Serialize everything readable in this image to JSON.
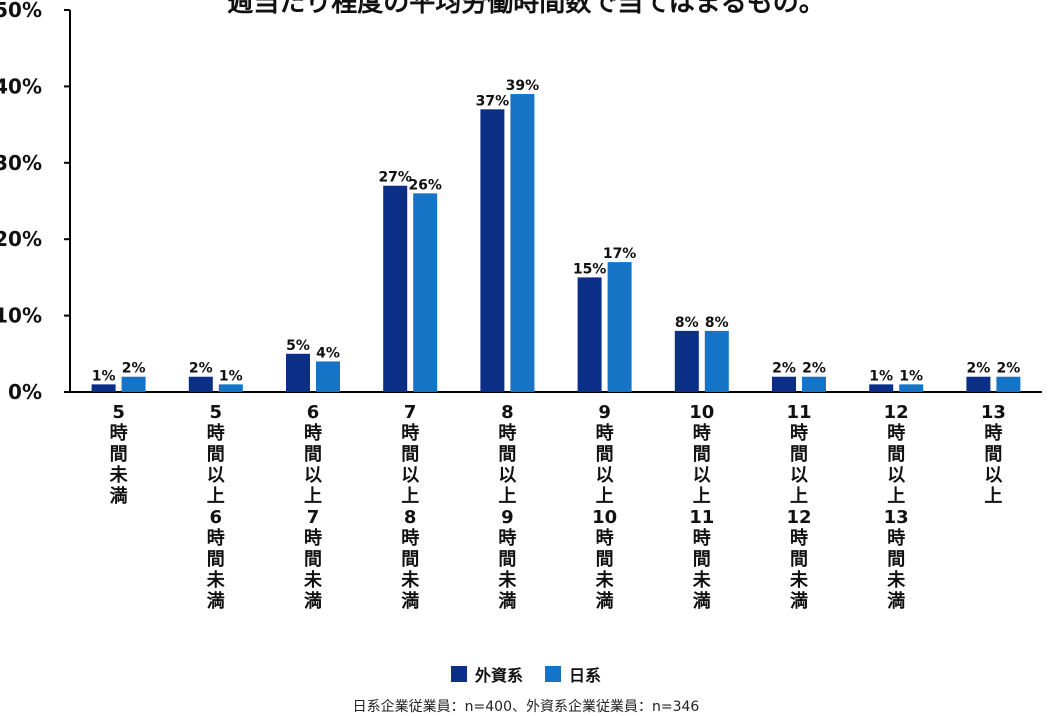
{
  "chart_data": {
    "type": "bar",
    "title": "週当たり程度の平均労働時間数で当てはまるもの。",
    "categories": [
      "5時間未満",
      "5時間以上6時間未満",
      "6時間以上7時間未満",
      "7時間以上8時間未満",
      "8時間以上9時間未満",
      "9時間以上10時間未満",
      "10時間以上11時間未満",
      "11時間以上12時間未満",
      "12時間以上13時間未満",
      "13時間以上"
    ],
    "series": [
      {
        "name": "外資系",
        "color": "#0b2f87",
        "values": [
          1,
          2,
          5,
          27,
          37,
          15,
          8,
          2,
          1,
          2
        ]
      },
      {
        "name": "日系",
        "color": "#1574c5",
        "values": [
          2,
          1,
          4,
          26,
          39,
          17,
          8,
          2,
          1,
          2
        ]
      }
    ],
    "yticks": [
      "0%",
      "10%",
      "20%",
      "30%",
      "40%",
      "50%"
    ],
    "ylim": [
      0,
      50
    ],
    "value_suffix": "%",
    "grid": false,
    "legend_position": "bottom",
    "footnote": "日系企業従業員：n=400、外資系企業従業員：n=346"
  }
}
